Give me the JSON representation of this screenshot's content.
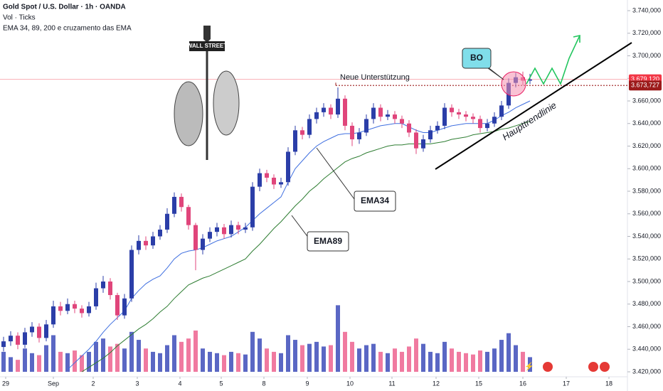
{
  "chart_data": {
    "type": "candlestick",
    "header": [
      "Gold Spot / U.S. Dollar · 1h · OANDA",
      "Vol · Ticks",
      "EMA 34, 89, 200 e cruzamento das EMA"
    ],
    "up_color": "#2b3ea8",
    "down_color": "#e0457b",
    "volume_up_color": "#5a67c4",
    "volume_down_color": "#f07aa0",
    "open": [
      3442,
      3447,
      3452,
      3444,
      3455,
      3460,
      3450,
      3462,
      3478,
      3474,
      3480,
      3476,
      3472,
      3478,
      3494,
      3500,
      3488,
      3470,
      3485,
      3528,
      3536,
      3532,
      3540,
      3546,
      3560,
      3575,
      3566,
      3550,
      3528,
      3538,
      3544,
      3548,
      3542,
      3550,
      3546,
      3548,
      3584,
      3596,
      3592,
      3586,
      3588,
      3615,
      3634,
      3630,
      3644,
      3650,
      3654,
      3648,
      3662,
      3638,
      3626,
      3632,
      3644,
      3654,
      3646,
      3648,
      3644,
      3640,
      3632,
      3618,
      3626,
      3634,
      3638,
      3654,
      3650,
      3648,
      3646,
      3644,
      3636,
      3640,
      3646,
      3656,
      3676,
      3681,
      3678
    ],
    "high": [
      3451,
      3456,
      3455,
      3459,
      3464,
      3463,
      3466,
      3483,
      3482,
      3485,
      3483,
      3479,
      3482,
      3499,
      3505,
      3503,
      3490,
      3489,
      3532,
      3541,
      3540,
      3544,
      3550,
      3565,
      3579,
      3578,
      3568,
      3552,
      3542,
      3548,
      3552,
      3551,
      3554,
      3553,
      3552,
      3588,
      3600,
      3599,
      3595,
      3592,
      3619,
      3638,
      3637,
      3648,
      3654,
      3658,
      3657,
      3672,
      3665,
      3641,
      3636,
      3648,
      3658,
      3657,
      3652,
      3651,
      3647,
      3643,
      3635,
      3630,
      3638,
      3642,
      3658,
      3657,
      3653,
      3651,
      3649,
      3647,
      3644,
      3650,
      3660,
      3680,
      3685,
      3686,
      3684
    ],
    "low": [
      3438,
      3443,
      3440,
      3441,
      3451,
      3446,
      3447,
      3459,
      3470,
      3471,
      3472,
      3468,
      3469,
      3475,
      3490,
      3484,
      3466,
      3467,
      3482,
      3524,
      3528,
      3529,
      3537,
      3543,
      3557,
      3562,
      3546,
      3510,
      3524,
      3535,
      3540,
      3538,
      3539,
      3542,
      3543,
      3545,
      3580,
      3588,
      3582,
      3583,
      3585,
      3612,
      3626,
      3627,
      3640,
      3646,
      3644,
      3645,
      3634,
      3620,
      3622,
      3629,
      3640,
      3642,
      3643,
      3640,
      3636,
      3628,
      3613,
      3615,
      3623,
      3631,
      3635,
      3646,
      3644,
      3642,
      3640,
      3632,
      3633,
      3637,
      3643,
      3653,
      3672,
      3674,
      3675
    ],
    "close": [
      3447,
      3452,
      3444,
      3455,
      3460,
      3450,
      3462,
      3478,
      3474,
      3480,
      3476,
      3472,
      3478,
      3494,
      3500,
      3488,
      3470,
      3485,
      3528,
      3536,
      3532,
      3540,
      3546,
      3560,
      3575,
      3566,
      3550,
      3528,
      3538,
      3544,
      3548,
      3542,
      3550,
      3546,
      3548,
      3584,
      3596,
      3592,
      3586,
      3588,
      3615,
      3634,
      3630,
      3644,
      3650,
      3654,
      3648,
      3662,
      3638,
      3626,
      3632,
      3644,
      3654,
      3646,
      3648,
      3644,
      3640,
      3632,
      3618,
      3626,
      3634,
      3638,
      3654,
      3650,
      3648,
      3646,
      3644,
      3636,
      3640,
      3646,
      3656,
      3676,
      3681,
      3678,
      3679
    ],
    "volume": [
      30,
      22,
      18,
      35,
      28,
      25,
      40,
      55,
      30,
      28,
      32,
      25,
      30,
      45,
      50,
      38,
      42,
      35,
      60,
      48,
      35,
      30,
      28,
      40,
      55,
      45,
      50,
      62,
      35,
      30,
      28,
      25,
      30,
      28,
      26,
      60,
      50,
      35,
      30,
      28,
      55,
      48,
      40,
      42,
      45,
      38,
      40,
      100,
      60,
      45,
      35,
      40,
      42,
      30,
      28,
      35,
      30,
      38,
      50,
      42,
      30,
      28,
      45,
      35,
      30,
      28,
      26,
      32,
      30,
      35,
      48,
      58,
      40,
      30,
      22
    ],
    "volume_lim": [
      0,
      110
    ],
    "ema34": [
      null,
      null,
      null,
      null,
      null,
      null,
      null,
      null,
      null,
      3422,
      3428,
      3434,
      3440,
      3447,
      3455,
      3462,
      3468,
      3474,
      3485,
      3492,
      3498,
      3502,
      3505,
      3512,
      3520,
      3525,
      3527,
      3528,
      3530,
      3533,
      3536,
      3538,
      3540,
      3544,
      3548,
      3554,
      3560,
      3565,
      3570,
      3575,
      3588,
      3600,
      3607,
      3614,
      3620,
      3624,
      3627,
      3630,
      3631,
      3631,
      3632,
      3634,
      3636,
      3638,
      3639,
      3640,
      3640,
      3637,
      3634,
      3632,
      3632,
      3634,
      3636,
      3638,
      3639,
      3640,
      3640,
      3640,
      3640,
      3643,
      3647,
      3650,
      3654,
      3657,
      3660
    ],
    "ema89": [
      null,
      null,
      null,
      null,
      null,
      null,
      null,
      null,
      null,
      null,
      null,
      3420,
      3424,
      3428,
      3432,
      3437,
      3443,
      3448,
      3453,
      3458,
      3462,
      3467,
      3473,
      3478,
      3485,
      3491,
      3497,
      3500,
      3503,
      3505,
      3508,
      3511,
      3514,
      3517,
      3520,
      3527,
      3533,
      3540,
      3547,
      3553,
      3560,
      3567,
      3573,
      3580,
      3585,
      3591,
      3596,
      3601,
      3606,
      3609,
      3611,
      3614,
      3616,
      3618,
      3620,
      3621,
      3621,
      3622,
      3622,
      3622,
      3622,
      3623,
      3624,
      3626,
      3627,
      3628,
      3630,
      3631,
      3632,
      3633,
      3635,
      3636,
      3638,
      3640,
      3642
    ],
    "ema34_color": "#3f6fe0",
    "ema89_color": "#2e7d32",
    "xlim": [
      0,
      88
    ],
    "xticks": [
      {
        "value": 0.8,
        "label": "29"
      },
      {
        "value": 7.5,
        "label": "Sep"
      },
      {
        "value": 13.1,
        "label": "2"
      },
      {
        "value": 19.3,
        "label": "3"
      },
      {
        "value": 25.3,
        "label": "4"
      },
      {
        "value": 31.1,
        "label": "5"
      },
      {
        "value": 37.1,
        "label": "8"
      },
      {
        "value": 43.2,
        "label": "9"
      },
      {
        "value": 49.2,
        "label": "10"
      },
      {
        "value": 55.1,
        "label": "11"
      },
      {
        "value": 61.3,
        "label": "12"
      },
      {
        "value": 67.3,
        "label": "15"
      },
      {
        "value": 73.5,
        "label": "16"
      },
      {
        "value": 79.6,
        "label": "17"
      },
      {
        "value": 85.6,
        "label": "18"
      }
    ],
    "ylim": [
      3420,
      3740
    ],
    "yticks": [
      {
        "value": 3420,
        "label": "3.420,000"
      },
      {
        "value": 3440,
        "label": "3.440,000"
      },
      {
        "value": 3460,
        "label": "3.460,000"
      },
      {
        "value": 3480,
        "label": "3.480,000"
      },
      {
        "value": 3500,
        "label": "3.500,000"
      },
      {
        "value": 3520,
        "label": "3.520,000"
      },
      {
        "value": 3540,
        "label": "3.540,000"
      },
      {
        "value": 3560,
        "label": "3.560,000"
      },
      {
        "value": 3580,
        "label": "3.580,000"
      },
      {
        "value": 3600,
        "label": "3.600,000"
      },
      {
        "value": 3620,
        "label": "3.620,000"
      },
      {
        "value": 3640,
        "label": "3.640,000"
      },
      {
        "value": 3660,
        "label": "3.660,000"
      },
      {
        "value": 3680,
        "label": "3.680,000"
      },
      {
        "value": 3700,
        "label": "3.700,000"
      },
      {
        "value": 3720,
        "label": "3.720,000"
      },
      {
        "value": 3740,
        "label": "3.740,000"
      }
    ],
    "price_labels": [
      {
        "value": 3679.12,
        "label": "3.679,120",
        "color": "#f23645"
      },
      {
        "value": 3673.727,
        "label": "3.673,727",
        "color": "#9c1b1b"
      }
    ],
    "annotations": {
      "support": "Neue Unterstützung",
      "ema34": "EMA34",
      "ema89": "EMA89",
      "breakout": "BO",
      "trendline": "Haupttrendlinie",
      "sign": "WALL STREET"
    }
  }
}
